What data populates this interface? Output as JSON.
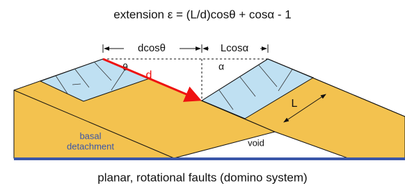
{
  "title": "extension ε = (L/d)cosθ + cosα - 1",
  "labels": {
    "d_cos_theta": "dcosθ",
    "l_cos_alpha": "Lcosα",
    "theta": "θ",
    "alpha": "α",
    "d": "d",
    "L": "L",
    "basal_detachment": [
      "basal",
      "detachment"
    ],
    "void": "void"
  },
  "caption": "planar, rotational faults (domino system)"
}
